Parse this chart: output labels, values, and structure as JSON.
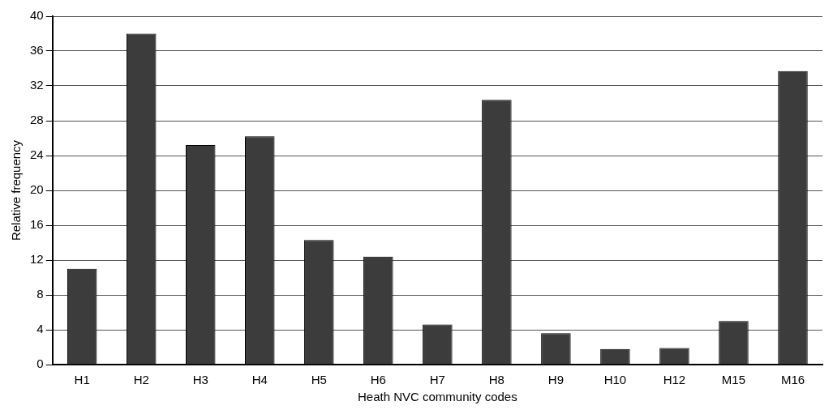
{
  "chart_data": {
    "type": "bar",
    "xlabel": "Heath NVC community codes",
    "ylabel": "Relative frequency",
    "categories": [
      "H1",
      "H2",
      "H3",
      "H4",
      "H5",
      "H6",
      "H7",
      "H8",
      "H9",
      "H10",
      "H12",
      "M15",
      "M16"
    ],
    "values": [
      11,
      38,
      25.2,
      26.2,
      14.3,
      12.4,
      4.6,
      30.4,
      3.6,
      1.8,
      1.9,
      5,
      33.7
    ],
    "color": "#3c3c3c",
    "ylim": [
      0,
      40
    ],
    "yticks": [
      0,
      4,
      8,
      12,
      16,
      20,
      24,
      28,
      32,
      36,
      40
    ],
    "grid": "y"
  }
}
